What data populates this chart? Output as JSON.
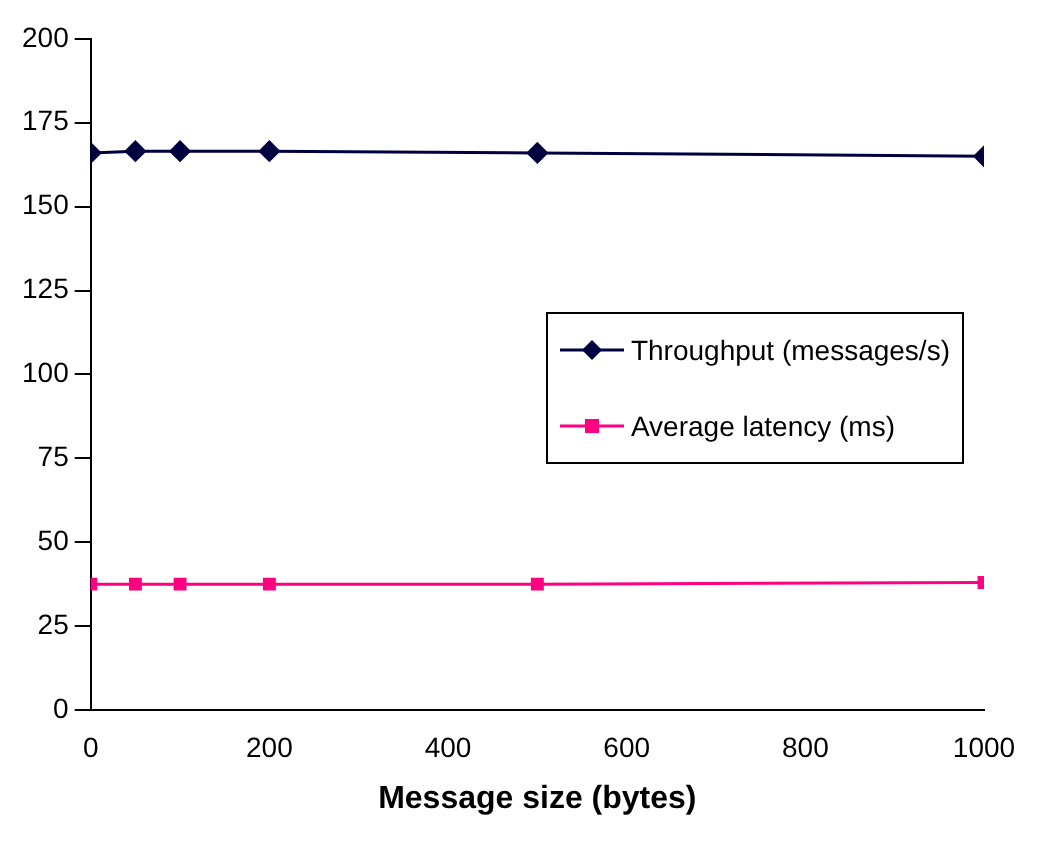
{
  "chart_data": {
    "type": "line",
    "xlabel": "Message size (bytes)",
    "x": [
      0,
      50,
      100,
      200,
      500,
      1000
    ],
    "xlim": [
      0,
      1000
    ],
    "xticks": [
      0,
      200,
      400,
      600,
      800,
      1000
    ],
    "ylim": [
      0,
      200
    ],
    "yticks": [
      0,
      25,
      50,
      75,
      100,
      125,
      150,
      175,
      200
    ],
    "grid": false,
    "legend": "right",
    "series": [
      {
        "name": "Throughput (messages/s)",
        "color": "#000040",
        "marker": "diamond",
        "values": [
          166,
          166.5,
          166.5,
          166.5,
          166,
          165
        ]
      },
      {
        "name": "Average latency (ms)",
        "color": "#ff0080",
        "marker": "square",
        "values": [
          37.5,
          37.5,
          37.5,
          37.5,
          37.5,
          38
        ]
      }
    ]
  }
}
